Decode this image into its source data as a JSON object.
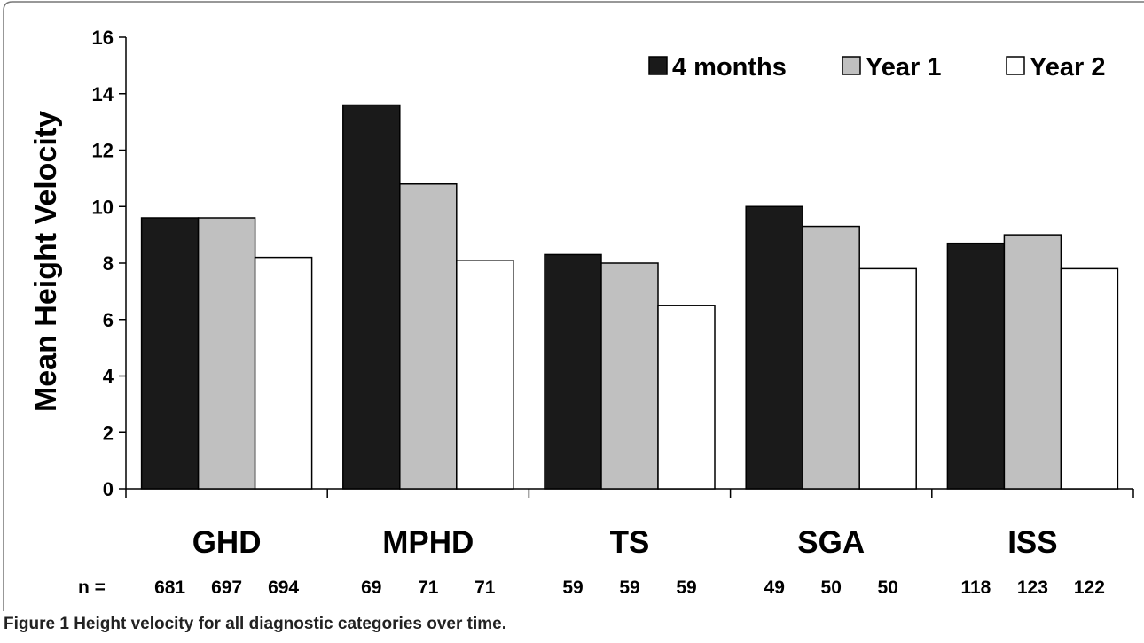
{
  "chart_data": {
    "type": "bar",
    "title": "",
    "xlabel": "",
    "ylabel": "Mean Height Velocity",
    "ylim": [
      0,
      16
    ],
    "yticks": [
      0,
      2,
      4,
      6,
      8,
      10,
      12,
      14,
      16
    ],
    "grid": false,
    "legend_position": "top-right",
    "categories": [
      "GHD",
      "MPHD",
      "TS",
      "SGA",
      "ISS"
    ],
    "series": [
      {
        "name": "4 months",
        "color": "#1a1a1a",
        "values": [
          9.6,
          13.6,
          8.3,
          10.0,
          8.7
        ]
      },
      {
        "name": "Year 1",
        "color": "#c0c0c0",
        "values": [
          9.6,
          10.8,
          8.0,
          9.3,
          9.0
        ]
      },
      {
        "name": "Year 2",
        "color": "#ffffff",
        "values": [
          8.2,
          8.1,
          6.5,
          7.8,
          7.8
        ]
      }
    ],
    "n_prefix": "n =",
    "n_values": [
      [
        "681",
        "697",
        "694"
      ],
      [
        "69",
        "71",
        "71"
      ],
      [
        "59",
        "59",
        "59"
      ],
      [
        "49",
        "50",
        "50"
      ],
      [
        "118",
        "123",
        "122"
      ]
    ]
  },
  "caption": {
    "label": "Figure 1",
    "text": "Height velocity for all diagnostic categories over time."
  }
}
